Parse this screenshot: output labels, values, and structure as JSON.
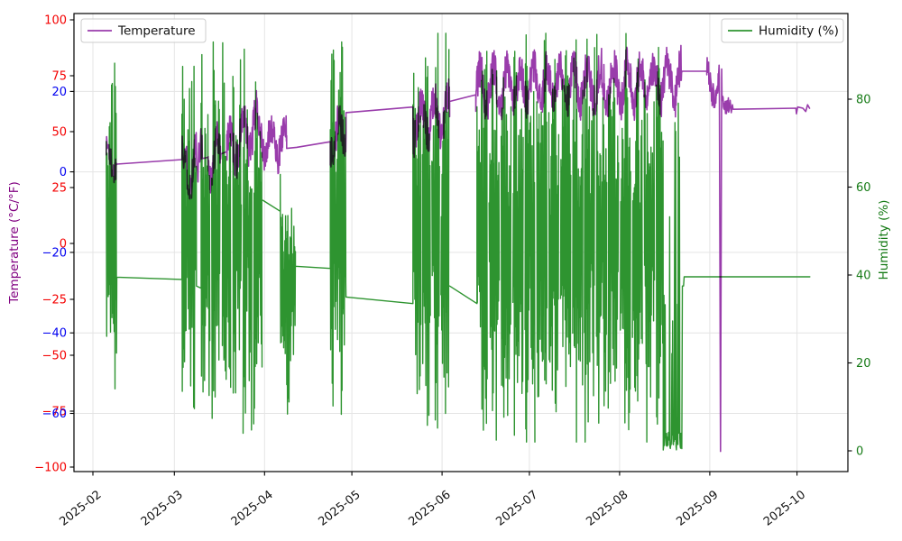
{
  "legend": {
    "temperature": {
      "label": "Temperature",
      "color": "#993cab",
      "position": "upper left"
    },
    "humidity": {
      "label": "Humidity (%)",
      "color": "#2e9430",
      "position": "upper right"
    }
  },
  "axes": {
    "x": {
      "tick_labels": [
        "2025-02",
        "2025-03",
        "2025-04",
        "2025-05",
        "2025-06",
        "2025-07",
        "2025-08",
        "2025-09",
        "2025-10"
      ],
      "tick_days_since_feb1": [
        0,
        28,
        59,
        89,
        120,
        150,
        181,
        212,
        242
      ],
      "rotation_deg": 38
    },
    "y_left": {
      "label": "Temperature (°C/°F)",
      "label_color": "#800080",
      "fahrenheit_ticks": [
        {
          "v": 100,
          "label": "100"
        },
        {
          "v": 75,
          "label": "75"
        },
        {
          "v": 50,
          "label": "50"
        },
        {
          "v": 25,
          "label": "25"
        },
        {
          "v": 0,
          "label": "0"
        },
        {
          "v": -25,
          "label": "−25"
        },
        {
          "v": -50,
          "label": "−50"
        },
        {
          "v": -75,
          "label": "−75"
        },
        {
          "v": -100,
          "label": "−100"
        }
      ],
      "fahrenheit_color": "#f40000",
      "celsius_ticks": [
        {
          "v": 20,
          "label": "20"
        },
        {
          "v": 0,
          "label": "0"
        },
        {
          "v": -20,
          "label": "−20"
        },
        {
          "v": -40,
          "label": "−40"
        },
        {
          "v": -60,
          "label": "−60"
        }
      ],
      "celsius_color": "#0000f0",
      "ylim_f": [
        -102.0,
        102.8
      ]
    },
    "y_right": {
      "label": "Humidity (%)",
      "label_color": "#157a15",
      "ticks": [
        {
          "v": 0,
          "label": "0"
        },
        {
          "v": 20,
          "label": "20"
        },
        {
          "v": 40,
          "label": "40"
        },
        {
          "v": 60,
          "label": "60"
        },
        {
          "v": 80,
          "label": "80"
        }
      ],
      "tick_color": "#157a15",
      "ylim_pct": [
        -4.9,
        99.5
      ]
    },
    "grid": {
      "color": "#e4e4e4",
      "horizontal_at_celsius_ticks": true,
      "vertical_at_month_ticks": true
    }
  },
  "chart_data": {
    "type": "line",
    "title": "",
    "xlabel": "",
    "x_unit": "days since 2025-02-01",
    "xlim_days": [
      -6.5,
      259.5
    ],
    "legend_position": [
      "upper left",
      "upper right"
    ],
    "grid": true,
    "series": [
      {
        "name": "Temperature",
        "unit": "°F",
        "axis": "left",
        "color": "#993cab",
        "seed": 1337,
        "segments": [
          {
            "d0": 4.6,
            "d1": 8.2,
            "type": "walk",
            "min": 24,
            "max": 51,
            "c0": 38,
            "c1": 38,
            "amp": 11
          },
          {
            "d0": 8.2,
            "d1": 30.6,
            "type": "ramp",
            "v0": 35.5,
            "v1": 37.5
          },
          {
            "d0": 30.6,
            "d1": 31.2,
            "type": "points",
            "pts": [
              [
                30.7,
                48
              ],
              [
                30.9,
                40
              ],
              [
                31.1,
                36
              ]
            ]
          },
          {
            "d0": 31.2,
            "d1": 35.6,
            "type": "walk",
            "min": 10,
            "max": 58,
            "c0": 34,
            "c1": 36,
            "amp": 16
          },
          {
            "d0": 35.6,
            "d1": 37.6,
            "type": "walk",
            "min": 20,
            "max": 60,
            "c0": 38,
            "c1": 38,
            "amp": 14
          },
          {
            "d0": 37.6,
            "d1": 39.6,
            "type": "ramp",
            "v0": 38,
            "v1": 38.5
          },
          {
            "d0": 39.6,
            "d1": 44.0,
            "type": "walk",
            "min": 18,
            "max": 62,
            "c0": 38,
            "c1": 40,
            "amp": 15
          },
          {
            "d0": 44.0,
            "d1": 46.0,
            "type": "ramp",
            "v0": 40,
            "v1": 41
          },
          {
            "d0": 46.0,
            "d1": 58.4,
            "type": "walk",
            "min": 22,
            "max": 75,
            "c0": 42,
            "c1": 54,
            "amp": 15
          },
          {
            "d0": 58.4,
            "d1": 66.6,
            "type": "walk",
            "min": 26,
            "max": 67,
            "c0": 45,
            "c1": 46,
            "amp": 13
          },
          {
            "d0": 66.6,
            "d1": 70.0,
            "type": "ramp",
            "v0": 42.5,
            "v1": 43
          },
          {
            "d0": 70.0,
            "d1": 81.6,
            "type": "ramp",
            "v0": 43,
            "v1": 45.5
          },
          {
            "d0": 81.6,
            "d1": 87.0,
            "type": "walk",
            "min": 28,
            "max": 72,
            "c0": 47,
            "c1": 50,
            "amp": 14
          },
          {
            "d0": 87.0,
            "d1": 110.0,
            "type": "ramp",
            "v0": 58.5,
            "v1": 61
          },
          {
            "d0": 110.0,
            "d1": 122.6,
            "type": "walk",
            "min": 30,
            "max": 80,
            "c0": 55,
            "c1": 58,
            "amp": 15
          },
          {
            "d0": 122.6,
            "d1": 131.6,
            "type": "ramp",
            "v0": 63.5,
            "v1": 66.5
          },
          {
            "d0": 131.6,
            "d1": 202.4,
            "type": "walk",
            "min": 40,
            "max": 93,
            "c0": 70,
            "c1": 72,
            "amp": 15
          },
          {
            "d0": 202.4,
            "d1": 211.0,
            "type": "ramp",
            "v0": 77,
            "v1": 77
          },
          {
            "d0": 211.0,
            "d1": 215.2,
            "type": "walk",
            "min": 56,
            "max": 84,
            "c0": 73,
            "c1": 70,
            "amp": 10
          },
          {
            "d0": 215.2,
            "d1": 216.2,
            "type": "points",
            "pts": [
              [
                215.3,
                74
              ],
              [
                215.7,
                -93
              ],
              [
                216.1,
                78
              ]
            ]
          },
          {
            "d0": 216.2,
            "d1": 218.5,
            "type": "walk",
            "min": 58,
            "max": 79,
            "c0": 66,
            "c1": 62,
            "amp": 7
          },
          {
            "d0": 218.5,
            "d1": 220.0,
            "type": "points",
            "pts": [
              [
                218.7,
                60
              ],
              [
                219.0,
                64
              ],
              [
                219.4,
                58.5
              ],
              [
                219.8,
                62
              ]
            ]
          },
          {
            "d0": 220.0,
            "d1": 241.6,
            "type": "ramp",
            "v0": 60,
            "v1": 60.5
          },
          {
            "d0": 241.6,
            "d1": 246.4,
            "type": "points",
            "pts": [
              [
                241.8,
                58
              ],
              [
                242.2,
                61
              ],
              [
                244.0,
                60.5
              ],
              [
                245.0,
                59
              ],
              [
                245.6,
                62
              ],
              [
                246.3,
                60.5
              ]
            ]
          }
        ]
      },
      {
        "name": "Humidity (%)",
        "unit": "%",
        "axis": "right",
        "color": "#2e9430",
        "seed": 9001,
        "segments": [
          {
            "d0": 4.6,
            "d1": 8.2,
            "type": "spiky",
            "min": 5,
            "max": 94
          },
          {
            "d0": 8.2,
            "d1": 30.6,
            "type": "ramp",
            "v0": 39.5,
            "v1": 39
          },
          {
            "d0": 30.6,
            "d1": 35.6,
            "type": "spiky",
            "min": 7,
            "max": 93
          },
          {
            "d0": 35.6,
            "d1": 37.2,
            "type": "ramp",
            "v0": 37.5,
            "v1": 37
          },
          {
            "d0": 37.2,
            "d1": 58.4,
            "type": "spiky",
            "min": 4,
            "max": 93,
            "gap_period": 3.6,
            "gap_frac": 0.16
          },
          {
            "d0": 58.4,
            "d1": 64.4,
            "type": "ramp",
            "v0": 57,
            "v1": 54.5
          },
          {
            "d0": 64.4,
            "d1": 69.6,
            "type": "spiky",
            "min": 8,
            "max": 66
          },
          {
            "d0": 69.6,
            "d1": 81.6,
            "type": "ramp",
            "v0": 42,
            "v1": 41.5
          },
          {
            "d0": 81.6,
            "d1": 87.0,
            "type": "spiky",
            "min": 8,
            "max": 93
          },
          {
            "d0": 87.0,
            "d1": 110.0,
            "type": "ramp",
            "v0": 35,
            "v1": 33.5
          },
          {
            "d0": 110.0,
            "d1": 122.6,
            "type": "spiky",
            "min": 3,
            "max": 95,
            "gap_period": 3.2,
            "gap_frac": 0.12
          },
          {
            "d0": 122.6,
            "d1": 132.0,
            "type": "ramp",
            "v0": 37.5,
            "v1": 33.5
          },
          {
            "d0": 132.0,
            "d1": 196.0,
            "type": "spiky",
            "min": 2,
            "max": 95,
            "gap_period": 4.1,
            "gap_frac": 0.12
          },
          {
            "d0": 196.0,
            "d1": 202.3,
            "type": "spiky",
            "min": 0,
            "max": 88,
            "bias_low": true
          },
          {
            "d0": 202.3,
            "d1": 203.2,
            "type": "points",
            "pts": [
              [
                202.4,
                0.5
              ],
              [
                202.6,
                37.5
              ],
              [
                203.0,
                37.5
              ]
            ]
          },
          {
            "d0": 203.2,
            "d1": 246.4,
            "type": "ramp",
            "v0": 39.6,
            "v1": 39.6
          }
        ]
      }
    ]
  }
}
